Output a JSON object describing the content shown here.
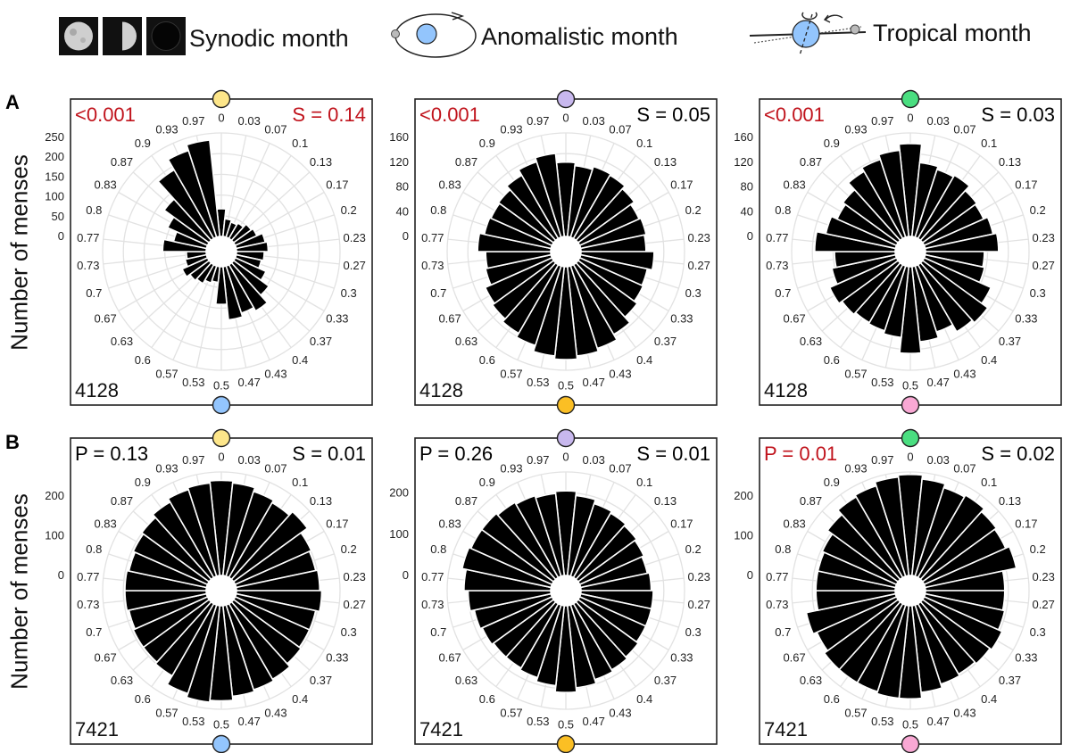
{
  "legend": {
    "synodic": "Synodic month",
    "anomalistic": "Anomalistic month",
    "tropical": "Tropical month"
  },
  "rows": {
    "a_letter": "A",
    "b_letter": "B",
    "ylabel": "Number of menses"
  },
  "colors": {
    "synodic_top": "#fde68a",
    "synodic_bottom": "#93c5fd",
    "anomalistic_top": "#c8b8ee",
    "anomalistic_bottom": "#fbbf24",
    "tropical_top": "#4ade80",
    "tropical_bottom": "#f9a8d4",
    "significant": "#c0121b",
    "bars": "#000000"
  },
  "chart_data": [
    {
      "type": "bar",
      "polar": true,
      "row": "A",
      "cycle": "Synodic month",
      "left_stat": "<0.001",
      "left_stat_color": "#c0121b",
      "right_stat": "S = 0.14",
      "right_stat_color": "#c0121b",
      "count": "4128",
      "top_marker": "#fde68a",
      "bottom_marker": "#93c5fd",
      "rlim": [
        0,
        250
      ],
      "radial_ticks": [
        "0",
        "50",
        "100",
        "150",
        "200",
        "250"
      ],
      "grid": true,
      "categories": [
        "0",
        "0.03",
        "0.07",
        "0.1",
        "0.13",
        "0.17",
        "0.2",
        "0.23",
        "0.27",
        "0.3",
        "0.33",
        "0.37",
        "0.4",
        "0.43",
        "0.47",
        "0.5",
        "0.53",
        "0.57",
        "0.6",
        "0.63",
        "0.67",
        "0.7",
        "0.73",
        "0.77",
        "0.8",
        "0.83",
        "0.87",
        "0.9",
        "0.93",
        "0.97"
      ],
      "values": [
        70,
        45,
        40,
        45,
        55,
        60,
        75,
        80,
        70,
        65,
        85,
        110,
        135,
        125,
        135,
        95,
        40,
        45,
        55,
        60,
        70,
        55,
        50,
        110,
        85,
        110,
        140,
        200,
        230,
        245
      ]
    },
    {
      "type": "bar",
      "polar": true,
      "row": "A",
      "cycle": "Anomalistic month",
      "left_stat": "<0.001",
      "left_stat_color": "#c0121b",
      "right_stat": "S = 0.05",
      "right_stat_color": "#000000",
      "count": "4128",
      "top_marker": "#c8b8ee",
      "bottom_marker": "#fbbf24",
      "rlim": [
        0,
        160
      ],
      "radial_ticks": [
        "0",
        "40",
        "80",
        "120",
        "160"
      ],
      "grid": true,
      "categories": [
        "0",
        "0.03",
        "0.07",
        "0.1",
        "0.13",
        "0.17",
        "0.2",
        "0.23",
        "0.27",
        "0.3",
        "0.33",
        "0.37",
        "0.4",
        "0.43",
        "0.47",
        "0.5",
        "0.53",
        "0.57",
        "0.6",
        "0.63",
        "0.67",
        "0.7",
        "0.73",
        "0.77",
        "0.8",
        "0.83",
        "0.87",
        "0.9",
        "0.93",
        "0.97"
      ],
      "values": [
        120,
        115,
        120,
        118,
        112,
        105,
        108,
        105,
        118,
        110,
        112,
        118,
        130,
        140,
        145,
        150,
        145,
        135,
        128,
        122,
        118,
        108,
        105,
        118,
        110,
        108,
        110,
        118,
        128,
        135
      ]
    },
    {
      "type": "bar",
      "polar": true,
      "row": "A",
      "cycle": "Tropical month",
      "left_stat": "<0.001",
      "left_stat_color": "#c0121b",
      "right_stat": "S = 0.03",
      "right_stat_color": "#000000",
      "count": "4128",
      "top_marker": "#4ade80",
      "bottom_marker": "#f9a8d4",
      "rlim": [
        0,
        160
      ],
      "radial_ticks": [
        "0",
        "40",
        "80",
        "120",
        "160"
      ],
      "grid": true,
      "categories": [
        "0",
        "0.03",
        "0.07",
        "0.1",
        "0.13",
        "0.17",
        "0.2",
        "0.23",
        "0.27",
        "0.3",
        "0.33",
        "0.37",
        "0.4",
        "0.43",
        "0.47",
        "0.5",
        "0.53",
        "0.57",
        "0.6",
        "0.63",
        "0.67",
        "0.7",
        "0.73",
        "0.77",
        "0.8",
        "0.83",
        "0.87",
        "0.9",
        "0.93",
        "0.97"
      ],
      "values": [
        150,
        120,
        115,
        118,
        108,
        105,
        112,
        118,
        95,
        98,
        118,
        130,
        125,
        112,
        122,
        140,
        115,
        110,
        108,
        112,
        118,
        105,
        98,
        130,
        115,
        105,
        110,
        125,
        132,
        140
      ]
    },
    {
      "type": "bar",
      "polar": true,
      "row": "B",
      "cycle": "Synodic month",
      "left_stat": "P = 0.13",
      "left_stat_color": "#000000",
      "right_stat": "S = 0.01",
      "right_stat_color": "#000000",
      "count": "7421",
      "top_marker": "#fde68a",
      "bottom_marker": "#93c5fd",
      "rlim": [
        0,
        250
      ],
      "radial_ticks": [
        "0",
        "100",
        "200"
      ],
      "grid": true,
      "categories": [
        "0",
        "0.03",
        "0.07",
        "0.1",
        "0.13",
        "0.17",
        "0.2",
        "0.23",
        "0.27",
        "0.3",
        "0.33",
        "0.37",
        "0.4",
        "0.43",
        "0.47",
        "0.5",
        "0.53",
        "0.57",
        "0.6",
        "0.63",
        "0.67",
        "0.7",
        "0.73",
        "0.77",
        "0.8",
        "0.83",
        "0.87",
        "0.9",
        "0.93",
        "0.97"
      ],
      "values": [
        240,
        235,
        225,
        218,
        230,
        210,
        205,
        210,
        215,
        205,
        205,
        210,
        220,
        225,
        230,
        240,
        245,
        235,
        210,
        205,
        205,
        200,
        205,
        205,
        200,
        205,
        210,
        220,
        230,
        235
      ]
    },
    {
      "type": "bar",
      "polar": true,
      "row": "B",
      "cycle": "Anomalistic month",
      "left_stat": "P = 0.26",
      "left_stat_color": "#000000",
      "right_stat": "S = 0.01",
      "right_stat_color": "#000000",
      "count": "7421",
      "top_marker": "#c8b8ee",
      "bottom_marker": "#fbbf24",
      "rlim": [
        0,
        240
      ],
      "radial_ticks": [
        "0",
        "100",
        "200"
      ],
      "grid": true,
      "categories": [
        "0",
        "0.03",
        "0.07",
        "0.1",
        "0.13",
        "0.17",
        "0.2",
        "0.23",
        "0.27",
        "0.3",
        "0.33",
        "0.37",
        "0.4",
        "0.43",
        "0.47",
        "0.5",
        "0.53",
        "0.57",
        "0.6",
        "0.63",
        "0.67",
        "0.7",
        "0.73",
        "0.77",
        "0.8",
        "0.83",
        "0.87",
        "0.9",
        "0.93",
        "0.97"
      ],
      "values": [
        205,
        195,
        185,
        180,
        175,
        170,
        165,
        170,
        175,
        175,
        175,
        180,
        185,
        190,
        200,
        210,
        195,
        185,
        180,
        180,
        185,
        190,
        200,
        210,
        220,
        215,
        215,
        210,
        205,
        200
      ]
    },
    {
      "type": "bar",
      "polar": true,
      "row": "B",
      "cycle": "Tropical month",
      "left_stat": "P = 0.01",
      "left_stat_color": "#c0121b",
      "right_stat": "S = 0.02",
      "right_stat_color": "#000000",
      "count": "7421",
      "top_marker": "#4ade80",
      "bottom_marker": "#f9a8d4",
      "rlim": [
        0,
        250
      ],
      "radial_ticks": [
        "0",
        "100",
        "200"
      ],
      "grid": true,
      "categories": [
        "0",
        "0.03",
        "0.07",
        "0.1",
        "0.13",
        "0.17",
        "0.2",
        "0.23",
        "0.27",
        "0.3",
        "0.33",
        "0.37",
        "0.4",
        "0.43",
        "0.47",
        "0.5",
        "0.53",
        "0.57",
        "0.6",
        "0.63",
        "0.67",
        "0.7",
        "0.73",
        "0.77",
        "0.8",
        "0.83",
        "0.87",
        "0.9",
        "0.93",
        "0.97"
      ],
      "values": [
        255,
        245,
        235,
        240,
        230,
        225,
        235,
        200,
        200,
        205,
        215,
        210,
        205,
        210,
        220,
        235,
        235,
        230,
        230,
        230,
        220,
        230,
        200,
        200,
        200,
        205,
        220,
        235,
        240,
        250
      ]
    }
  ]
}
